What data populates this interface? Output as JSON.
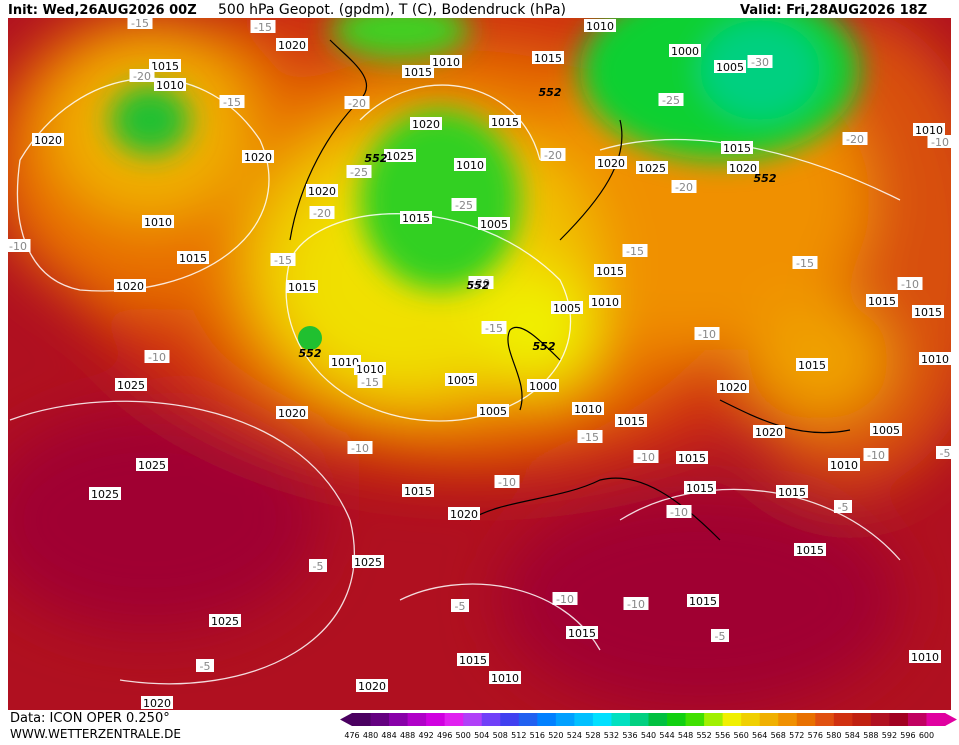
{
  "header": {
    "init": "Init: Wed,26AUG2026 00Z",
    "title": "500 hPa Geopot. (gpdm), T (C), Bodendruck (hPa)",
    "valid": "Valid: Fri,28AUG2026 18Z"
  },
  "footer": {
    "data": "Data: ICON OPER 0.250°",
    "site": "WWW.WETTERZENTRALE.DE"
  },
  "colorbar": {
    "levels": [
      476,
      480,
      484,
      488,
      492,
      496,
      500,
      504,
      508,
      512,
      516,
      520,
      524,
      528,
      532,
      536,
      540,
      544,
      548,
      552,
      556,
      560,
      564,
      568,
      572,
      576,
      580,
      584,
      588,
      592,
      596,
      600
    ],
    "colors": [
      "#4a0060",
      "#640080",
      "#8800a8",
      "#b000c8",
      "#d000e0",
      "#e020f0",
      "#b040f8",
      "#7040f8",
      "#4040f0",
      "#2060f0",
      "#0080ff",
      "#00a0ff",
      "#00c0ff",
      "#00e0ff",
      "#00e0c0",
      "#00d080",
      "#00c040",
      "#10d010",
      "#40e000",
      "#a0f000",
      "#f0f000",
      "#f0d000",
      "#f0b000",
      "#f09000",
      "#e87000",
      "#e05010",
      "#d03010",
      "#c02010",
      "#b01020",
      "#a00020",
      "#c00060",
      "#e000a0"
    ]
  },
  "map": {
    "pressure_labels": [
      "1015",
      "1010",
      "1020",
      "1020",
      "1010",
      "1015",
      "1020",
      "1020",
      "1015",
      "1010",
      "1010",
      "1015",
      "1000",
      "1005",
      "1020",
      "1025",
      "1015",
      "1010",
      "1020",
      "1015",
      "1005",
      "1020",
      "1025",
      "1015",
      "1020",
      "1010",
      "1015",
      "1015",
      "1010",
      "1005",
      "1010",
      "1010",
      "1005",
      "1005",
      "1000",
      "1010",
      "1015",
      "1020",
      "1020",
      "1020",
      "1015",
      "1015",
      "1015",
      "1010",
      "1005",
      "1010",
      "1015",
      "1015",
      "1015",
      "1015",
      "1020",
      "1015",
      "1015",
      "1015",
      "1015",
      "1010",
      "1020",
      "1025",
      "1025",
      "1025",
      "1025",
      "1025",
      "1020",
      "1010"
    ],
    "temperature_labels": [
      "-15",
      "-15",
      "-20",
      "-15",
      "-20",
      "-25",
      "-20",
      "-15",
      "-10",
      "-10",
      "-15",
      "-15",
      "-20",
      "-25",
      "-20",
      "-20",
      "-15",
      "-25",
      "-30",
      "-20",
      "-10",
      "-15",
      "-10",
      "-10",
      "-15",
      "-10",
      "-10",
      "-10",
      "-10",
      "-5",
      "-5",
      "-5",
      "-10",
      "-10",
      "-5",
      "-5",
      "-10",
      "-5"
    ],
    "geopot_labels": [
      "552",
      "552",
      "552",
      "552",
      "552",
      "552"
    ]
  }
}
